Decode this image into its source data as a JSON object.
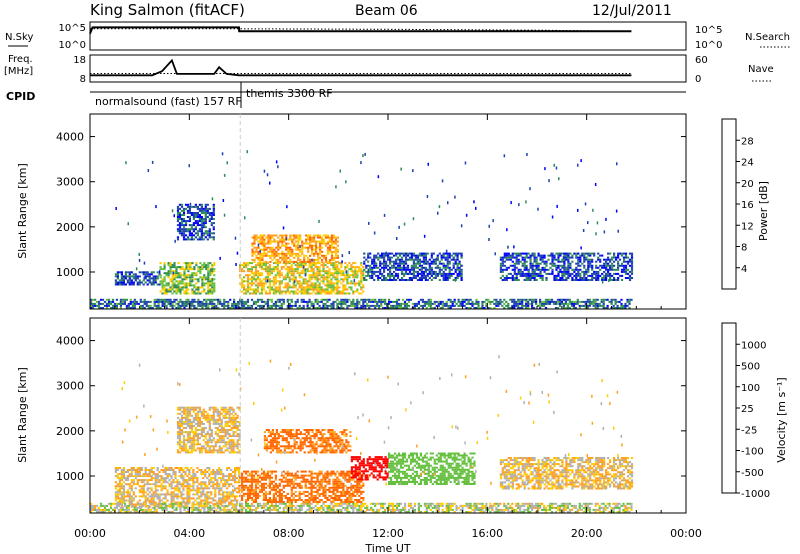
{
  "header": {
    "title": "King Salmon (fitACF)",
    "beam": "Beam 06",
    "date": "12/Jul/2011"
  },
  "noise_panel": {
    "left_label": "N.Sky",
    "right_label": "N.Search",
    "left_ticks": [
      "10^5",
      "10^0"
    ],
    "right_ticks": [
      "10^5",
      "10^0"
    ]
  },
  "freq_panel": {
    "left_label": "Freq.",
    "left_unit": "[MHz]",
    "right_label": "Nave",
    "left_ticks": [
      "18",
      "8"
    ],
    "right_ticks": [
      "60",
      "0"
    ]
  },
  "cpid": {
    "label": "CPID",
    "modes": [
      {
        "name": "normalsound (fast)",
        "id": "157",
        "rf": "RF"
      },
      {
        "name": "themis",
        "id": "3300",
        "rf": "RF"
      }
    ]
  },
  "power_panel": {
    "ylabel": "Slant Range [km]",
    "yticks": [
      "4000",
      "3000",
      "2000",
      "1000"
    ],
    "colorbar_label": "Power [dB]",
    "colorbar_ticks": [
      "28",
      "24",
      "20",
      "16",
      "12",
      "8",
      "4"
    ],
    "colorbar_colors": [
      "#ff0000",
      "#ff6600",
      "#ffa020",
      "#ffcc00",
      "#66c040",
      "#2e8b57",
      "#1e40b0",
      "#0000ff"
    ]
  },
  "velocity_panel": {
    "ylabel": "Slant Range [km]",
    "yticks": [
      "4000",
      "3000",
      "2000",
      "1000"
    ],
    "colorbar_label": "Velocity [m s⁻¹]",
    "colorbar_ticks": [
      "1000",
      "500",
      "100",
      "25",
      "-25",
      "-100",
      "-500",
      "-1000"
    ],
    "colorbar_colors": [
      "#1e40b0",
      "#2e8b57",
      "#66c040",
      "#b0b0b0",
      "#ffcc00",
      "#ffa020",
      "#ff6600",
      "#ff0000"
    ]
  },
  "xaxis": {
    "label": "Time UT",
    "ticks": [
      "00:00",
      "04:00",
      "08:00",
      "12:00",
      "16:00",
      "20:00",
      "00:00"
    ]
  },
  "chart_data": [
    {
      "type": "heatmap",
      "title": "Power [dB]",
      "xlabel": "Time UT",
      "ylabel": "Slant Range [km]",
      "xlim": [
        0,
        24
      ],
      "ylim": [
        180,
        4500
      ],
      "clim": [
        0,
        32
      ],
      "features": [
        {
          "t": [
            1.0,
            2.8
          ],
          "r": [
            700,
            1000
          ],
          "value": 6
        },
        {
          "t": [
            2.8,
            5.0
          ],
          "r": [
            500,
            1200
          ],
          "value": 14
        },
        {
          "t": [
            3.5,
            5.0
          ],
          "r": [
            1700,
            2500
          ],
          "value": 6
        },
        {
          "t": [
            6.0,
            11.0
          ],
          "r": [
            500,
            1200
          ],
          "value": 18
        },
        {
          "t": [
            6.5,
            10.0
          ],
          "r": [
            1200,
            1800
          ],
          "value": 22
        },
        {
          "t": [
            11.0,
            15.0
          ],
          "r": [
            800,
            1400
          ],
          "value": 6
        },
        {
          "t": [
            16.5,
            21.8
          ],
          "r": [
            800,
            1400
          ],
          "value": 6
        },
        {
          "t": [
            0.0,
            21.8
          ],
          "r": [
            180,
            400
          ],
          "value": 8
        }
      ]
    },
    {
      "type": "heatmap",
      "title": "Velocity [m s⁻¹]",
      "xlabel": "Time UT",
      "ylabel": "Slant Range [km]",
      "xlim": [
        0,
        24
      ],
      "ylim": [
        180,
        4500
      ],
      "clim": [
        -1000,
        1000
      ],
      "features": [
        {
          "t": [
            1.0,
            6.0
          ],
          "r": [
            300,
            1200
          ],
          "value": 0
        },
        {
          "t": [
            3.5,
            6.0
          ],
          "r": [
            1500,
            2500
          ],
          "value": 0
        },
        {
          "t": [
            7.0,
            10.5
          ],
          "r": [
            1500,
            2000
          ],
          "value": -150
        },
        {
          "t": [
            6.0,
            11.0
          ],
          "r": [
            400,
            1100
          ],
          "value": -150
        },
        {
          "t": [
            10.5,
            12.0
          ],
          "r": [
            900,
            1400
          ],
          "value": -700
        },
        {
          "t": [
            12.0,
            15.5
          ],
          "r": [
            800,
            1500
          ],
          "value": 300
        },
        {
          "t": [
            16.5,
            21.8
          ],
          "r": [
            700,
            1400
          ],
          "value": 0
        },
        {
          "t": [
            0.0,
            21.8
          ],
          "r": [
            180,
            400
          ],
          "value": 60
        }
      ]
    },
    {
      "type": "line",
      "title": "N.Sky / N.Search",
      "series": [
        {
          "name": "N.Sky",
          "x": [
            0,
            0.1,
            6,
            6.01,
            21.8
          ],
          "y": [
            1000,
            20000,
            20000,
            3000,
            3000
          ]
        },
        {
          "name": "N.Search",
          "x": [
            0,
            6,
            12,
            18,
            21.8
          ],
          "y": [
            10000,
            10000,
            8000,
            5000,
            3000
          ]
        }
      ]
    },
    {
      "type": "line",
      "title": "Freq. / Nave",
      "series": [
        {
          "name": "Freq.",
          "x": [
            0,
            0.3,
            2.5,
            2.9,
            3.3,
            3.5,
            5.0,
            5.2,
            5.5,
            6.0,
            21.8
          ],
          "y": [
            10.5,
            10.5,
            10.5,
            12,
            16,
            11,
            11,
            13.5,
            11,
            10.5,
            10.5
          ]
        },
        {
          "name": "Nave",
          "x": [
            0,
            21.8
          ],
          "y": [
            19,
            19
          ]
        }
      ]
    }
  ]
}
